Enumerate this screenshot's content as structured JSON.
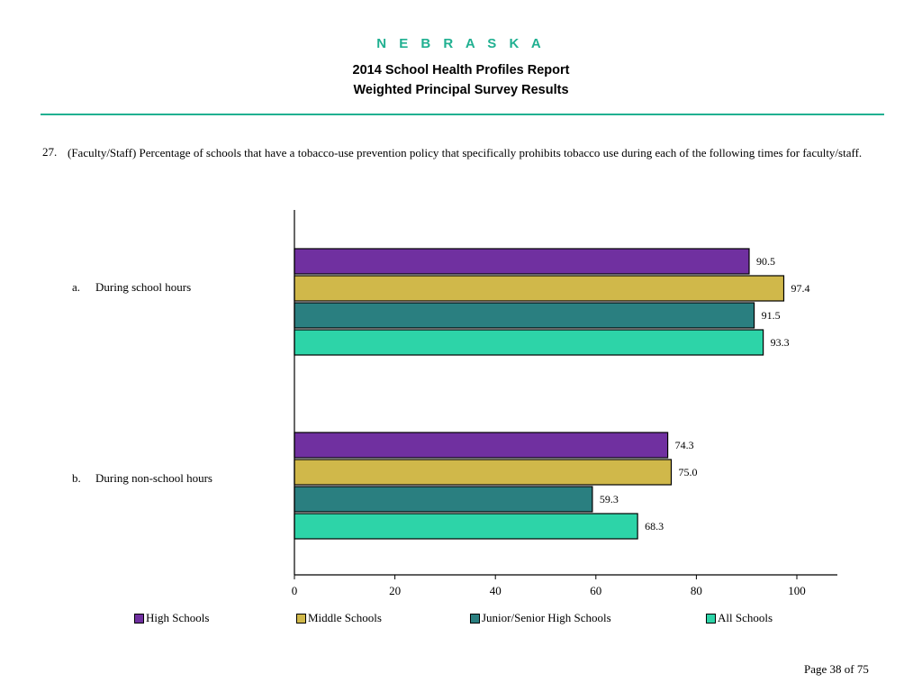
{
  "header": {
    "state": "N E B R A S K A",
    "title_line1": "2014 School Health Profiles Report",
    "title_line2": "Weighted Principal Survey Results"
  },
  "question": {
    "number": "27.",
    "text": "(Faculty/Staff) Percentage of schools that have a tobacco-use prevention policy that specifically prohibits tobacco use during each of the following times for faculty/staff."
  },
  "chart_data": {
    "type": "bar",
    "orientation": "horizontal",
    "categories": [
      {
        "letter": "a.",
        "label": "During school hours"
      },
      {
        "letter": "b.",
        "label": "During non-school hours"
      }
    ],
    "series": [
      {
        "name": "High Schools",
        "color": "#7030a0",
        "values": [
          90.5,
          74.3
        ],
        "labels": [
          "90.5",
          "74.3"
        ]
      },
      {
        "name": "Middle Schools",
        "color": "#d0b84a",
        "values": [
          97.4,
          75.0
        ],
        "labels": [
          "97.4",
          "75.0"
        ]
      },
      {
        "name": "Junior/Senior High Schools",
        "color": "#2a7f80",
        "values": [
          91.5,
          59.3
        ],
        "labels": [
          "91.5",
          "59.3"
        ]
      },
      {
        "name": "All Schools",
        "color": "#2dd4a8",
        "values": [
          93.3,
          68.3
        ],
        "labels": [
          "93.3",
          "68.3"
        ]
      }
    ],
    "xlim": [
      0,
      100
    ],
    "xticks": [
      "0",
      "20",
      "40",
      "60",
      "80",
      "100"
    ],
    "legend_position": "bottom"
  },
  "footer": {
    "page": "Page 38 of 75"
  }
}
